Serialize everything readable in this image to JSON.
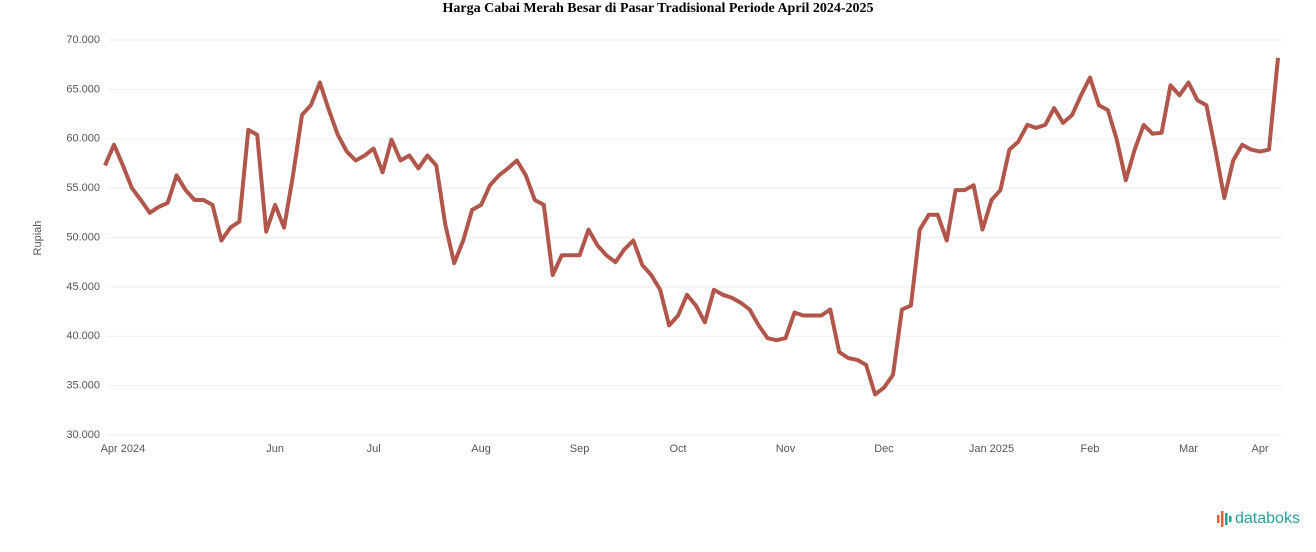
{
  "chart_data": {
    "type": "line",
    "title": "Harga Cabai Merah Besar di Pasar Tradisional Periode April 2024-2025",
    "y_label": "Rupiah",
    "brand": "databoks",
    "categories": [
      null,
      null,
      "Apr 2024",
      null,
      null,
      null,
      null,
      null,
      null,
      null,
      null,
      null,
      null,
      null,
      null,
      null,
      null,
      null,
      null,
      "Jun",
      null,
      null,
      null,
      null,
      null,
      null,
      null,
      null,
      null,
      null,
      "Jul",
      null,
      null,
      null,
      null,
      null,
      null,
      null,
      null,
      null,
      null,
      null,
      "Aug",
      null,
      null,
      null,
      null,
      null,
      null,
      null,
      null,
      null,
      null,
      "Sep",
      null,
      null,
      null,
      null,
      null,
      null,
      null,
      null,
      null,
      null,
      "Oct",
      null,
      null,
      null,
      null,
      null,
      null,
      null,
      null,
      null,
      null,
      null,
      "Nov",
      null,
      null,
      null,
      null,
      null,
      null,
      null,
      null,
      null,
      null,
      "Dec",
      null,
      null,
      null,
      null,
      null,
      null,
      null,
      null,
      null,
      null,
      null,
      "Jan 2025",
      null,
      null,
      null,
      null,
      null,
      null,
      null,
      null,
      null,
      null,
      "Feb",
      null,
      null,
      null,
      null,
      null,
      null,
      null,
      null,
      null,
      null,
      "Mar",
      null,
      null,
      null,
      null,
      null,
      null,
      null,
      "Apr",
      null,
      null
    ],
    "series": [
      {
        "name": "Harga",
        "color": "#b0564a",
        "values": [
          57300,
          59400,
          57300,
          55000,
          53800,
          52500,
          53100,
          53500,
          56300,
          54800,
          53800,
          53800,
          53300,
          49700,
          51000,
          51600,
          60900,
          60400,
          50600,
          53300,
          51000,
          56300,
          62400,
          63400,
          65700,
          62900,
          60400,
          58700,
          57800,
          58300,
          59000,
          56600,
          59900,
          57800,
          58300,
          57000,
          58300,
          57300,
          51300,
          47400,
          49700,
          52800,
          53300,
          55300,
          56300,
          57000,
          57800,
          56300,
          53800,
          53300,
          46200,
          48200,
          48200,
          48200,
          50800,
          49200,
          48200,
          47500,
          48800,
          49700,
          47200,
          46200,
          44700,
          41100,
          42100,
          44200,
          43100,
          41400,
          44700,
          44200,
          43900,
          43400,
          42700,
          41100,
          39800,
          39600,
          39800,
          42400,
          42100,
          42100,
          42100,
          42700,
          38400,
          37800,
          37600,
          37100,
          34100,
          34800,
          36100,
          42700,
          43100,
          50800,
          52300,
          52300,
          49700,
          54800,
          54800,
          55300,
          50800,
          53800,
          54800,
          58900,
          59700,
          61400,
          61100,
          61400,
          63100,
          61600,
          62400,
          64400,
          66200,
          63400,
          62900,
          59900,
          55800,
          58900,
          61400,
          60500,
          60600,
          65400,
          64400,
          65700,
          63900,
          63400,
          58900,
          54000,
          57800,
          59400,
          58900,
          58700,
          58900,
          68200
        ]
      }
    ],
    "ylim": [
      30000,
      70000
    ],
    "yticks": [
      {
        "value": 30000,
        "label": "30.000"
      },
      {
        "value": 35000,
        "label": "35.000"
      },
      {
        "value": 40000,
        "label": "40.000"
      },
      {
        "value": 45000,
        "label": "45.000"
      },
      {
        "value": 50000,
        "label": "50.000"
      },
      {
        "value": 55000,
        "label": "55.000"
      },
      {
        "value": 60000,
        "label": "60.000"
      },
      {
        "value": 65000,
        "label": "65.000"
      },
      {
        "value": 70000,
        "label": "70.000"
      }
    ],
    "grid": true
  }
}
